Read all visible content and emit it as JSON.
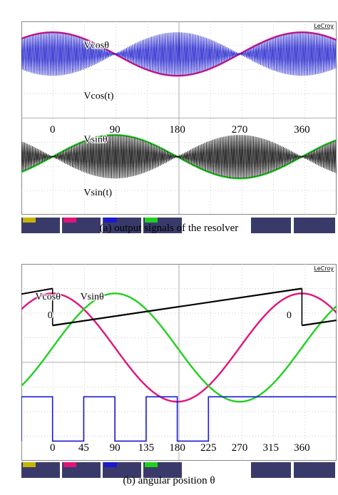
{
  "brand": "LeCroy",
  "colors": {
    "background": "#ffffff",
    "grid": "#b8b8b8",
    "ch1": "#c8b400",
    "ch2": "#e0157a",
    "ch3": "#1a1acc",
    "ch4": "#20d020",
    "black": "#000000",
    "status_bar": "#3a3a6a"
  },
  "chart_data": [
    {
      "id": "a",
      "type": "line",
      "caption": "(a) output signals of the resolver",
      "xlabel": "",
      "x_tick_labels": [
        "0",
        "90",
        "180",
        "270",
        "360"
      ],
      "x_ticks_deg": [
        0,
        90,
        180,
        270,
        360
      ],
      "xlim_deg": [
        -45,
        410
      ],
      "labels": [
        "Vcosθ",
        "Vcos(t)",
        "Vsinθ",
        "Vsin(t)"
      ],
      "series": [
        {
          "name": "Vcosθ",
          "color": "#e0157a",
          "function": "cos",
          "amplitude": 0.9,
          "offset_div": 1.35
        },
        {
          "name": "Vcos(t)",
          "color": "#1a1acc",
          "function": "cos-envelope",
          "amplitude": 0.9,
          "offset_div": 1.35
        },
        {
          "name": "Vsinθ",
          "color": "#20d020",
          "function": "sin",
          "amplitude": 0.9,
          "offset_div": 5.6
        },
        {
          "name": "Vsin(t)",
          "color": "#000000",
          "function": "sin-envelope",
          "amplitude": 0.9,
          "offset_div": 5.6
        }
      ],
      "grid": true
    },
    {
      "id": "b",
      "type": "line",
      "caption": "(b) angular position θ",
      "x_tick_labels": [
        "0",
        "45",
        "90",
        "135",
        "180",
        "225",
        "270",
        "315",
        "360"
      ],
      "x_ticks_deg": [
        0,
        45,
        90,
        135,
        180,
        225,
        270,
        315,
        360
      ],
      "xlim_deg": [
        -45,
        410
      ],
      "labels": [
        "Vcosθ",
        "Vsinθ",
        "0",
        "0"
      ],
      "series": [
        {
          "name": "Vcosθ",
          "color": "#e0157a",
          "function": "cos",
          "amplitude": 2.2,
          "offset_div": 3.4
        },
        {
          "name": "Vsinθ",
          "color": "#20d020",
          "function": "sin",
          "amplitude": 2.2,
          "offset_div": 3.4
        },
        {
          "name": "",
          "color": "#000000",
          "function": "ramp",
          "low_div": 1.0,
          "high_div": 2.5
        },
        {
          "name": "",
          "color": "#1a1acc",
          "function": "square",
          "period_deg": 90,
          "low_div": 7.2,
          "high_div": 5.4
        }
      ],
      "grid": true
    }
  ]
}
